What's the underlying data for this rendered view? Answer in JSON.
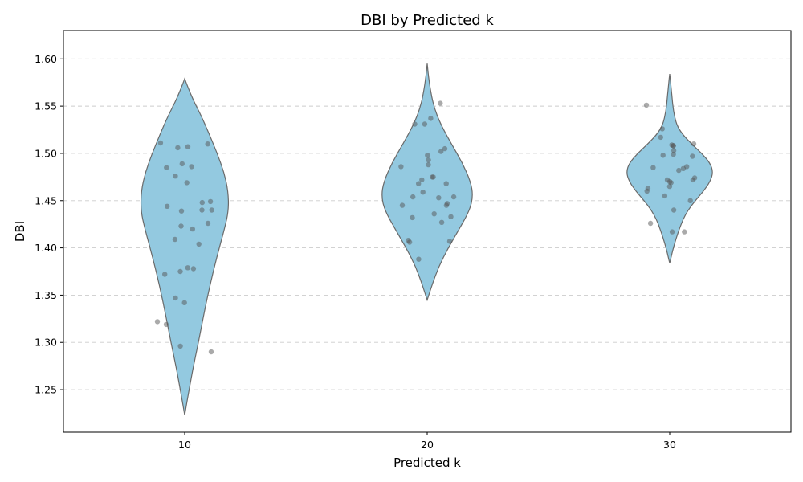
{
  "chart_data": {
    "type": "violin",
    "title": "DBI by Predicted k",
    "xlabel": "Predicted k",
    "ylabel": "DBI",
    "categories": [
      "10",
      "20",
      "30"
    ],
    "ylim": [
      1.205,
      1.63
    ],
    "yticks": [
      1.25,
      1.3,
      1.35,
      1.4,
      1.45,
      1.5,
      1.55,
      1.6
    ],
    "ytick_labels": [
      "1.25",
      "1.30",
      "1.35",
      "1.40",
      "1.45",
      "1.50",
      "1.55",
      "1.60"
    ],
    "grid": "y-dashed",
    "colors": {
      "violin_fill": "#93c9e0",
      "violin_edge": "#6a6a6a",
      "point": "#555555",
      "grid": "#cccccc"
    },
    "violins": [
      {
        "category": "10",
        "profile": [
          [
            1.223,
            0.0
          ],
          [
            1.24,
            0.06
          ],
          [
            1.27,
            0.17
          ],
          [
            1.3,
            0.3
          ],
          [
            1.33,
            0.42
          ],
          [
            1.36,
            0.55
          ],
          [
            1.39,
            0.7
          ],
          [
            1.42,
            0.87
          ],
          [
            1.44,
            0.96
          ],
          [
            1.46,
            0.95
          ],
          [
            1.48,
            0.86
          ],
          [
            1.5,
            0.71
          ],
          [
            1.52,
            0.54
          ],
          [
            1.54,
            0.36
          ],
          [
            1.555,
            0.2
          ],
          [
            1.57,
            0.07
          ],
          [
            1.579,
            0.0
          ]
        ],
        "points": [
          1.51,
          1.511,
          1.507,
          1.506,
          1.489,
          1.486,
          1.485,
          1.476,
          1.469,
          1.449,
          1.448,
          1.444,
          1.44,
          1.44,
          1.439,
          1.426,
          1.423,
          1.42,
          1.409,
          1.404,
          1.379,
          1.378,
          1.375,
          1.372,
          1.347,
          1.342,
          1.322,
          1.319,
          1.296,
          1.29
        ]
      },
      {
        "category": "20",
        "profile": [
          [
            1.345,
            0.0
          ],
          [
            1.36,
            0.1
          ],
          [
            1.38,
            0.25
          ],
          [
            1.4,
            0.46
          ],
          [
            1.42,
            0.7
          ],
          [
            1.44,
            0.93
          ],
          [
            1.455,
            1.0
          ],
          [
            1.47,
            0.95
          ],
          [
            1.49,
            0.77
          ],
          [
            1.51,
            0.53
          ],
          [
            1.53,
            0.3
          ],
          [
            1.55,
            0.14
          ],
          [
            1.57,
            0.06
          ],
          [
            1.585,
            0.02
          ],
          [
            1.595,
            0.0
          ]
        ],
        "points": [
          1.553,
          1.537,
          1.531,
          1.531,
          1.505,
          1.502,
          1.498,
          1.493,
          1.488,
          1.486,
          1.475,
          1.475,
          1.472,
          1.468,
          1.468,
          1.459,
          1.454,
          1.454,
          1.453,
          1.447,
          1.445,
          1.445,
          1.436,
          1.433,
          1.432,
          1.427,
          1.408,
          1.407,
          1.406,
          1.388
        ]
      },
      {
        "category": "30",
        "profile": [
          [
            1.384,
            0.0
          ],
          [
            1.39,
            0.03
          ],
          [
            1.4,
            0.08
          ],
          [
            1.41,
            0.14
          ],
          [
            1.42,
            0.21
          ],
          [
            1.43,
            0.29
          ],
          [
            1.44,
            0.4
          ],
          [
            1.45,
            0.56
          ],
          [
            1.46,
            0.74
          ],
          [
            1.47,
            0.88
          ],
          [
            1.48,
            0.95
          ],
          [
            1.49,
            0.88
          ],
          [
            1.5,
            0.7
          ],
          [
            1.51,
            0.48
          ],
          [
            1.52,
            0.28
          ],
          [
            1.53,
            0.15
          ],
          [
            1.545,
            0.08
          ],
          [
            1.56,
            0.05
          ],
          [
            1.575,
            0.02
          ],
          [
            1.584,
            0.0
          ]
        ],
        "points": [
          1.551,
          1.526,
          1.517,
          1.51,
          1.509,
          1.508,
          1.508,
          1.503,
          1.499,
          1.498,
          1.497,
          1.486,
          1.485,
          1.484,
          1.482,
          1.474,
          1.472,
          1.472,
          1.47,
          1.469,
          1.465,
          1.463,
          1.46,
          1.455,
          1.45,
          1.44,
          1.426,
          1.417,
          1.417
        ]
      }
    ]
  }
}
